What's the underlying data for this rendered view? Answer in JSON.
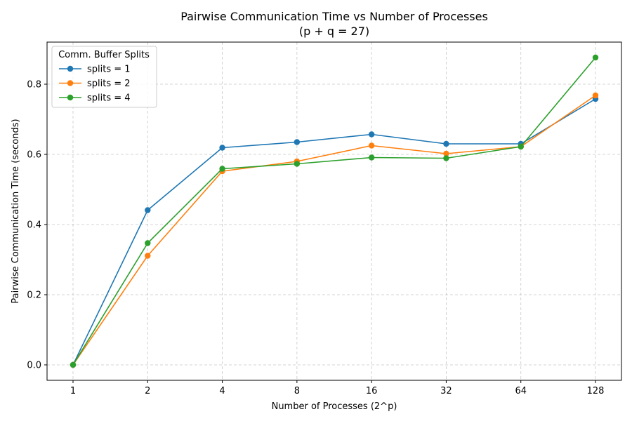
{
  "chart_data": {
    "type": "line",
    "title_line1": "Pairwise Communication Time vs Number of Processes",
    "title_line2": "(p + q = 27)",
    "xlabel": "Number of Processes (2^p)",
    "ylabel": "Pairwise Communication Time (seconds)",
    "categories": [
      "1",
      "2",
      "4",
      "8",
      "16",
      "32",
      "64",
      "128"
    ],
    "ylim": [
      -0.044,
      0.92
    ],
    "yticks": [
      0.0,
      0.2,
      0.4,
      0.6,
      0.8
    ],
    "ytick_labels": [
      "0.0",
      "0.2",
      "0.4",
      "0.6",
      "0.8"
    ],
    "grid": true,
    "legend": {
      "title": "Comm. Buffer Splits",
      "placement": "top-left"
    },
    "series": [
      {
        "name": "splits = 1",
        "color": "#1f77b4",
        "values": [
          0.0,
          0.441,
          0.619,
          0.635,
          0.657,
          0.63,
          0.63,
          0.758
        ]
      },
      {
        "name": "splits = 2",
        "color": "#ff7f0e",
        "values": [
          0.0,
          0.311,
          0.552,
          0.58,
          0.625,
          0.602,
          0.622,
          0.768
        ]
      },
      {
        "name": "splits = 4",
        "color": "#2ca02c",
        "values": [
          0.0,
          0.347,
          0.559,
          0.573,
          0.591,
          0.589,
          0.622,
          0.876
        ]
      }
    ]
  }
}
